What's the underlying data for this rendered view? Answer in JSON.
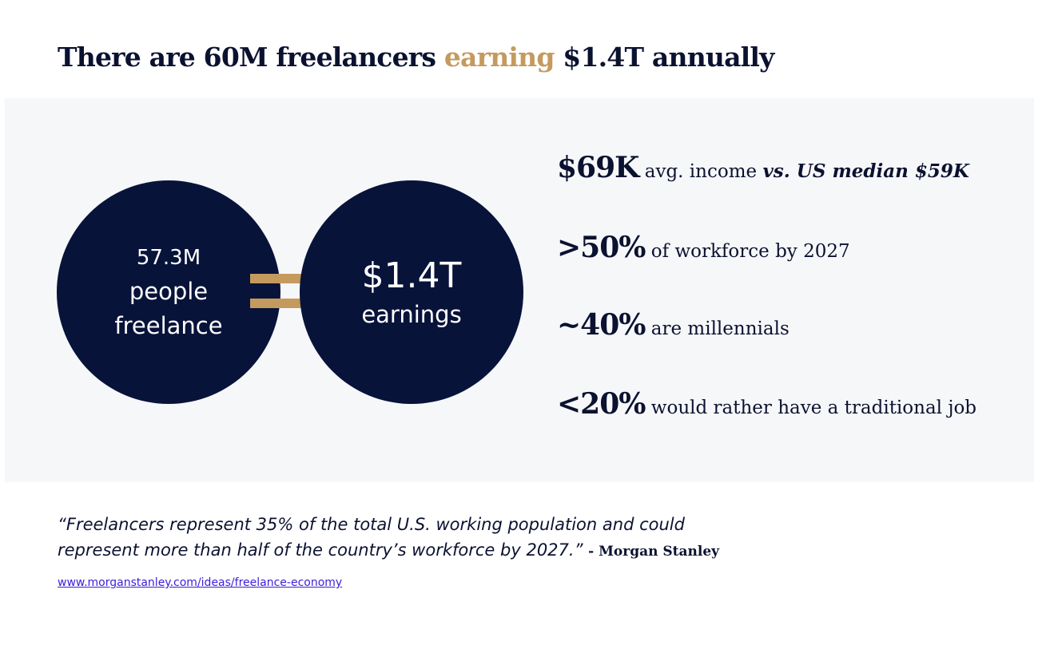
{
  "header": {
    "title_part1": "There are 60M freelancers ",
    "title_accent": "earning",
    "title_part2": " $1.4T annually"
  },
  "visual": {
    "left_circle": {
      "line1": "57.3M",
      "line2": "people",
      "line3": "freelance"
    },
    "right_circle": {
      "big": "$1.4T",
      "small": "earnings"
    },
    "equals_icon": "equals-sign-icon",
    "colors": {
      "navy": "#08133a",
      "gold": "#c49a5e",
      "panel": "#f6f7f9"
    }
  },
  "stats": [
    {
      "num": "$69K",
      "text": " avg. income ",
      "emphasis": "vs. US median $59K"
    },
    {
      "num": ">50%",
      "text": " of workforce by 2027"
    },
    {
      "num": "~40%",
      "text": " are millennials"
    },
    {
      "num": "<20%",
      "text": " would rather have a traditional job"
    }
  ],
  "quote": {
    "line1": "“Freelancers represent 35% of the total U.S. working population and  could",
    "line2": "represent more than half of the country’s workforce by 2027.” ",
    "attribution": "- Morgan Stanley"
  },
  "source": {
    "link_text": "www.morganstanley.com/ideas/freelance-economy"
  }
}
